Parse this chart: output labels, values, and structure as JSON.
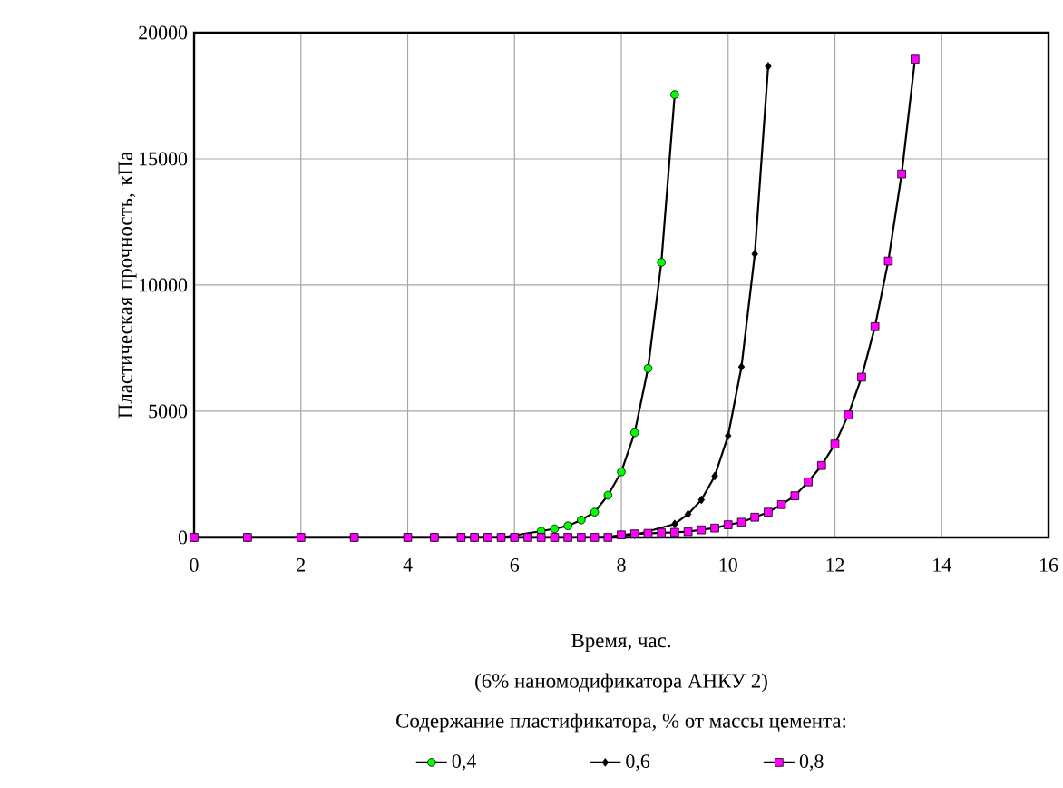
{
  "chart_data": {
    "type": "line",
    "xlabel": "Время, час.",
    "ylabel": "Пластическая прочность, кПа",
    "annotations": [
      "(6% наномодификатора АНКУ 2)"
    ],
    "legend_title": "Содержание пластификатора, % от массы цемента:",
    "xlim": [
      0,
      16
    ],
    "ylim": [
      0,
      20000
    ],
    "xticks": [
      0,
      2,
      4,
      6,
      8,
      10,
      12,
      14,
      16
    ],
    "yticks": [
      0,
      5000,
      10000,
      15000,
      20000
    ],
    "grid": true,
    "legend": "bottom",
    "line_style": "solid",
    "series": [
      {
        "name": "0,4",
        "color": "#00ff00",
        "marker": "circle",
        "x": [
          0,
          1,
          2,
          3,
          4,
          4.5,
          5,
          5.25,
          5.5,
          5.75,
          6,
          6.25,
          6.5,
          6.75,
          7,
          7.25,
          7.5,
          7.75,
          8,
          8.25,
          8.5,
          8.75,
          9
        ],
        "values": [
          0,
          0,
          0,
          0,
          0,
          0,
          0,
          0,
          0,
          0,
          null,
          null,
          250,
          340,
          460,
          690,
          1000,
          1670,
          2600,
          4150,
          6700,
          10900,
          17550
        ]
      },
      {
        "name": "0,6",
        "color": "#000000",
        "marker": "diamond",
        "x": [
          0,
          1,
          2,
          3,
          4,
          4.5,
          5,
          5.25,
          5.5,
          5.75,
          6,
          6.25,
          6.5,
          6.75,
          7,
          7.25,
          7.5,
          7.75,
          8,
          8.25,
          8.5,
          8.75,
          9,
          9.25,
          9.5,
          9.75,
          10,
          10.25,
          10.5,
          10.75
        ],
        "values": [
          0,
          0,
          0,
          0,
          0,
          0,
          0,
          0,
          0,
          0,
          0,
          0,
          0,
          0,
          0,
          0,
          0,
          null,
          null,
          100,
          null,
          null,
          530,
          920,
          1490,
          2430,
          4030,
          6760,
          11230,
          18670
        ]
      },
      {
        "name": "0,8",
        "color": "#ff00ff",
        "marker": "square",
        "x": [
          0,
          1,
          2,
          3,
          4,
          4.5,
          5,
          5.25,
          5.5,
          5.75,
          6,
          6.25,
          6.5,
          6.75,
          7,
          7.25,
          7.5,
          7.75,
          8,
          8.25,
          8.5,
          8.75,
          9,
          9.25,
          9.5,
          9.75,
          10,
          10.25,
          10.5,
          10.75,
          11,
          11.25,
          11.5,
          11.75,
          12,
          12.25,
          12.5,
          12.75,
          13,
          13.25,
          13.5
        ],
        "values": [
          0,
          0,
          0,
          0,
          0,
          0,
          0,
          0,
          0,
          0,
          0,
          0,
          0,
          0,
          0,
          0,
          0,
          0,
          100,
          140,
          160,
          180,
          200,
          230,
          300,
          370,
          500,
          600,
          800,
          1000,
          1300,
          1650,
          2200,
          2850,
          3700,
          4850,
          6350,
          8350,
          10950,
          14400,
          18950
        ]
      }
    ]
  }
}
